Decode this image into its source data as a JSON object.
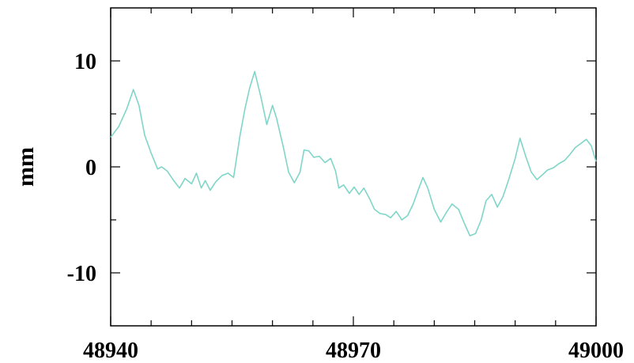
{
  "chart_data": {
    "type": "line",
    "title": "",
    "xlabel": "",
    "ylabel": "mm",
    "xlim": [
      48940,
      49000
    ],
    "ylim": [
      -15,
      15
    ],
    "grid": false,
    "x_ticks": [
      48940,
      48970,
      49000
    ],
    "x_tick_labels": [
      "48940",
      "48970",
      "49000"
    ],
    "y_ticks": [
      10,
      0,
      -10
    ],
    "y_tick_labels": [
      "10",
      "0",
      "-10"
    ],
    "line_color": "#7fd6c8",
    "series": [
      {
        "x": [
          48940.0,
          48941.0,
          48942.0,
          48942.8,
          48943.5,
          48944.2,
          48945.0,
          48945.8,
          48946.3,
          48947.0,
          48947.8,
          48948.5,
          48949.2,
          48950.0,
          48950.6,
          48951.2,
          48951.7,
          48952.3,
          48953.0,
          48953.8,
          48954.5,
          48955.2,
          48956.0,
          48956.6,
          48957.2,
          48957.8,
          48958.6,
          48959.3,
          48960.0,
          48960.5,
          48961.3,
          48962.0,
          48962.7,
          48963.4,
          48963.9,
          48964.5,
          48965.1,
          48965.8,
          48966.5,
          48967.2,
          48967.8,
          48968.2,
          48968.8,
          48969.5,
          48970.1,
          48970.7,
          48971.3,
          48972.0,
          48972.6,
          48973.3,
          48974.0,
          48974.6,
          48975.3,
          48976.0,
          48976.7,
          48977.4,
          48978.0,
          48978.6,
          48979.2,
          48980.0,
          48980.8,
          48981.5,
          48982.2,
          48983.0,
          48983.7,
          48984.4,
          48985.1,
          48985.8,
          48986.4,
          48987.1,
          48987.8,
          48988.5,
          48989.2,
          48990.0,
          48990.6,
          48991.3,
          48992.0,
          48992.7,
          48993.3,
          48994.0,
          48994.7,
          48995.4,
          48996.1,
          48996.8,
          48997.4,
          48998.1,
          48998.8,
          48999.4,
          49000.0
        ],
        "y": [
          2.8,
          3.8,
          5.5,
          7.3,
          5.8,
          3.0,
          1.3,
          -0.2,
          0.0,
          -0.4,
          -1.3,
          -2.0,
          -1.1,
          -1.6,
          -0.6,
          -2.0,
          -1.3,
          -2.2,
          -1.4,
          -0.8,
          -0.6,
          -1.0,
          3.0,
          5.5,
          7.5,
          9.0,
          6.5,
          4.0,
          5.8,
          4.6,
          2.0,
          -0.5,
          -1.5,
          -0.5,
          1.6,
          1.5,
          0.9,
          1.0,
          0.4,
          0.8,
          -0.4,
          -2.0,
          -1.7,
          -2.5,
          -1.9,
          -2.6,
          -2.0,
          -3.0,
          -4.0,
          -4.4,
          -4.5,
          -4.8,
          -4.2,
          -5.0,
          -4.6,
          -3.5,
          -2.2,
          -1.0,
          -2.0,
          -4.0,
          -5.2,
          -4.3,
          -3.5,
          -4.0,
          -5.3,
          -6.5,
          -6.3,
          -5.0,
          -3.2,
          -2.6,
          -3.8,
          -2.8,
          -1.2,
          0.8,
          2.7,
          1.0,
          -0.5,
          -1.2,
          -0.8,
          -0.3,
          -0.1,
          0.3,
          0.6,
          1.2,
          1.8,
          2.2,
          2.6,
          2.0,
          0.5
        ]
      }
    ]
  }
}
